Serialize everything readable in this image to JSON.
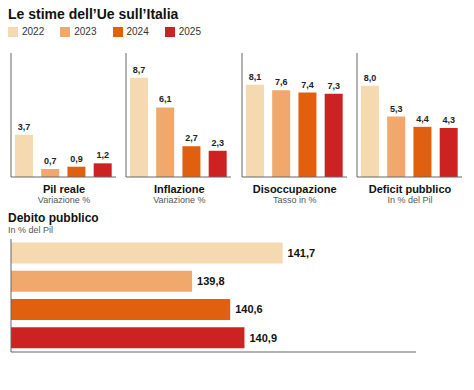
{
  "title": "Le stime dell’Ue sull’Italia",
  "chart_data": [
    {
      "type": "bar",
      "title": "Pil reale",
      "subtitle": "Variazione %",
      "categories": [
        "2022",
        "2023",
        "2024",
        "2025"
      ],
      "values": [
        3.7,
        0.7,
        0.9,
        1.2
      ],
      "value_labels": [
        "3,7",
        "0,7",
        "0,9",
        "1,2"
      ],
      "data_labels": true,
      "colors": [
        "#f5d9b0",
        "#f0a86c",
        "#e06010",
        "#cc2222"
      ],
      "ylim": [
        0,
        10.875
      ],
      "tick_labels": false,
      "grid": false,
      "legend": "top"
    },
    {
      "type": "bar",
      "title": "Inflazione",
      "subtitle": "Variazione %",
      "categories": [
        "2022",
        "2023",
        "2024",
        "2025"
      ],
      "values": [
        8.7,
        6.1,
        2.7,
        2.3
      ],
      "value_labels": [
        "8,7",
        "6,1",
        "2,7",
        "2,3"
      ],
      "data_labels": true,
      "colors": [
        "#f5d9b0",
        "#f0a86c",
        "#e06010",
        "#cc2222"
      ],
      "ylim": [
        0,
        10.875
      ],
      "tick_labels": false,
      "grid": false
    },
    {
      "type": "bar",
      "title": "Disoccupazione",
      "subtitle": "Tasso in %",
      "categories": [
        "2022",
        "2023",
        "2024",
        "2025"
      ],
      "values": [
        8.1,
        7.6,
        7.4,
        7.3
      ],
      "value_labels": [
        "8,1",
        "7,6",
        "7,4",
        "7,3"
      ],
      "data_labels": true,
      "colors": [
        "#f5d9b0",
        "#f0a86c",
        "#e06010",
        "#cc2222"
      ],
      "ylim": [
        0,
        10.875
      ],
      "tick_labels": false,
      "grid": false
    },
    {
      "type": "bar",
      "title": "Deficit pubblico",
      "subtitle": "In % del Pil",
      "categories": [
        "2022",
        "2023",
        "2024",
        "2025"
      ],
      "values": [
        8.0,
        5.3,
        4.4,
        4.3
      ],
      "value_labels": [
        "8,0",
        "5,3",
        "4,4",
        "4,3"
      ],
      "data_labels": true,
      "colors": [
        "#f5d9b0",
        "#f0a86c",
        "#e06010",
        "#cc2222"
      ],
      "ylim": [
        0,
        10.875
      ],
      "tick_labels": false,
      "grid": false
    },
    {
      "type": "bar",
      "orientation": "horizontal",
      "title": "Debito pubblico",
      "subtitle": "In % del Pil",
      "categories": [
        "2022",
        "2023",
        "2024",
        "2025"
      ],
      "values": [
        141.7,
        139.8,
        140.6,
        140.9
      ],
      "value_labels": [
        "141,7",
        "139,8",
        "140,6",
        "140,9"
      ],
      "data_labels": true,
      "colors": [
        "#f5d9b0",
        "#f0a86c",
        "#e06010",
        "#cc2222"
      ],
      "xlim": [
        136.0,
        144.5
      ],
      "tick_labels": false,
      "grid": false
    }
  ]
}
